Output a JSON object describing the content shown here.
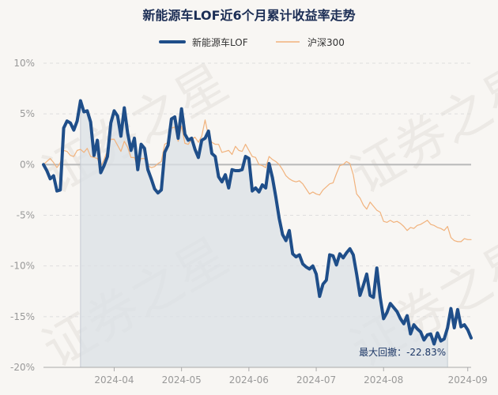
{
  "chart_data": {
    "type": "line",
    "title": "新能源车LOF近6个月累计收益率走势",
    "watermark": "证券之星",
    "ylim": [
      -20,
      10
    ],
    "yticks": [
      10,
      5,
      0,
      -5,
      -10,
      -15,
      -20
    ],
    "yticks_labels": [
      "10%",
      "5%",
      "0%",
      "-5%",
      "-10%",
      "-15%",
      "-20%"
    ],
    "xticks_labels": [
      "2024-04",
      "2024-05",
      "2024-06",
      "2024-07",
      "2024-08",
      "2024-09"
    ],
    "xticks_index": [
      21,
      41,
      61,
      81,
      101,
      126
    ],
    "n_points": 128,
    "max_drawdown": {
      "label": "最大回撤：",
      "value": "-22.83%",
      "start_index": 11,
      "end_index": 120
    },
    "series": [
      {
        "name": "新能源车LOF",
        "color": "#1f4e89",
        "values": [
          0.0,
          -0.6,
          -1.4,
          -1.1,
          -2.6,
          -2.5,
          3.6,
          4.3,
          4.1,
          3.4,
          4.3,
          6.3,
          5.2,
          5.3,
          4.2,
          0.9,
          2.4,
          -0.8,
          -0.1,
          0.8,
          4.1,
          5.3,
          4.8,
          2.8,
          5.6,
          3.1,
          1.4,
          2.6,
          -0.5,
          2.0,
          1.6,
          -0.5,
          -1.4,
          -2.4,
          -2.8,
          -2.5,
          1.2,
          1.9,
          4.5,
          4.7,
          2.6,
          5.5,
          3.0,
          2.4,
          2.6,
          1.5,
          0.7,
          2.4,
          2.6,
          3.3,
          1.1,
          0.8,
          -1.2,
          -1.7,
          -1.0,
          -2.3,
          -0.5,
          -0.6,
          -0.6,
          -0.5,
          0.8,
          0.6,
          -2.6,
          -2.3,
          -2.7,
          -2.0,
          -2.3,
          0.1,
          -1.3,
          -3.2,
          -5.3,
          -6.9,
          -7.5,
          -6.5,
          -8.8,
          -9.1,
          -8.9,
          -9.8,
          -10.1,
          -10.3,
          -10.0,
          -10.8,
          -13.0,
          -11.8,
          -11.4,
          -8.9,
          -9.0,
          -9.9,
          -8.8,
          -9.2,
          -8.7,
          -8.3,
          -8.9,
          -10.8,
          -12.9,
          -11.9,
          -10.8,
          -12.9,
          -13.1,
          -10.2,
          -13.1,
          -15.2,
          -14.6,
          -13.7,
          -14.1,
          -14.5,
          -15.2,
          -15.7,
          -14.9,
          -16.7,
          -15.8,
          -16.2,
          -16.5,
          -17.3,
          -16.8,
          -16.7,
          -17.7,
          -16.6,
          -17.4,
          -17.2,
          -16.1,
          -14.2,
          -16.1,
          -14.3,
          -16.0,
          -15.8,
          -16.3,
          -17.1
        ]
      },
      {
        "name": "沪深300",
        "color": "#f1b27c",
        "values": [
          0.0,
          0.3,
          0.6,
          0.2,
          -0.3,
          0.2,
          1.4,
          1.3,
          0.9,
          0.8,
          1.4,
          1.5,
          1.2,
          1.6,
          0.8,
          0.7,
          0.6,
          -0.2,
          0.5,
          1.4,
          2.5,
          2.5,
          1.9,
          1.3,
          2.3,
          1.7,
          0.7,
          0.7,
          -0.3,
          0.6,
          0.6,
          -0.1,
          -0.3,
          -0.2,
          0.1,
          0.3,
          2.0,
          2.2,
          3.6,
          3.7,
          2.3,
          3.8,
          2.1,
          2.0,
          2.5,
          2.7,
          2.2,
          2.8,
          4.4,
          2.8,
          2.2,
          2.0,
          2.0,
          1.2,
          1.3,
          1.4,
          1.0,
          1.8,
          1.4,
          1.3,
          2.0,
          1.4,
          0.8,
          0.7,
          0.0,
          -0.1,
          -0.3,
          0.8,
          0.5,
          0.3,
          0.0,
          -0.5,
          -1.1,
          -1.4,
          -1.6,
          -1.7,
          -1.6,
          -1.9,
          -2.4,
          -2.9,
          -2.7,
          -2.9,
          -3.0,
          -2.5,
          -2.2,
          -1.9,
          -1.8,
          -0.9,
          -0.1,
          0.0,
          0.3,
          0.1,
          -1.0,
          -2.9,
          -3.3,
          -4.0,
          -4.4,
          -3.7,
          -4.1,
          -4.5,
          -4.7,
          -5.6,
          -5.7,
          -5.5,
          -5.7,
          -5.6,
          -5.8,
          -6.1,
          -6.5,
          -6.2,
          -6.3,
          -6.0,
          -5.9,
          -5.7,
          -5.5,
          -5.9,
          -6.0,
          -6.2,
          -6.3,
          -6.5,
          -6.1,
          -7.2,
          -7.5,
          -7.6,
          -7.6,
          -7.3,
          -7.4,
          -7.4
        ]
      }
    ]
  }
}
